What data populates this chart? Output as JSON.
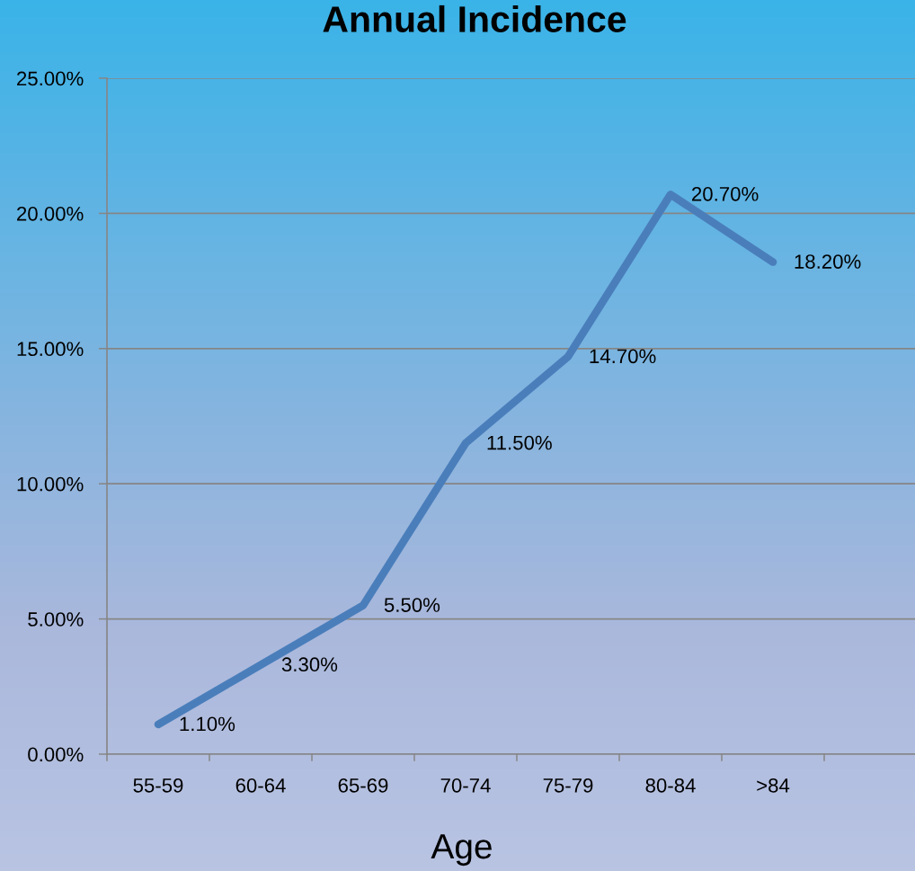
{
  "chart_data": {
    "type": "line",
    "title": "Annual Incidence",
    "xlabel": "Age",
    "categories": [
      "55-59",
      "60-64",
      "65-69",
      "70-74",
      "75-79",
      "80-84",
      ">84",
      null
    ],
    "series": [
      {
        "color": "#4a7ebb",
        "values": [
          1.1,
          3.3,
          5.5,
          11.5,
          14.7,
          20.7,
          18.2,
          null
        ],
        "value_labels": [
          "1.10%",
          "3.30%",
          "5.50%",
          "11.50%",
          "14.70%",
          "20.70%",
          "18.20%",
          null
        ]
      }
    ],
    "ylim": [
      0,
      25
    ],
    "yticks": [
      {
        "value": 0,
        "label": "0.00%"
      },
      {
        "value": 5,
        "label": "5.00%"
      },
      {
        "value": 10,
        "label": "10.00%"
      },
      {
        "value": 15,
        "label": "15.00%"
      },
      {
        "value": 20,
        "label": "20.00%"
      },
      {
        "value": 25,
        "label": "25.00%"
      }
    ],
    "grid": "y",
    "line_style": "solid"
  }
}
